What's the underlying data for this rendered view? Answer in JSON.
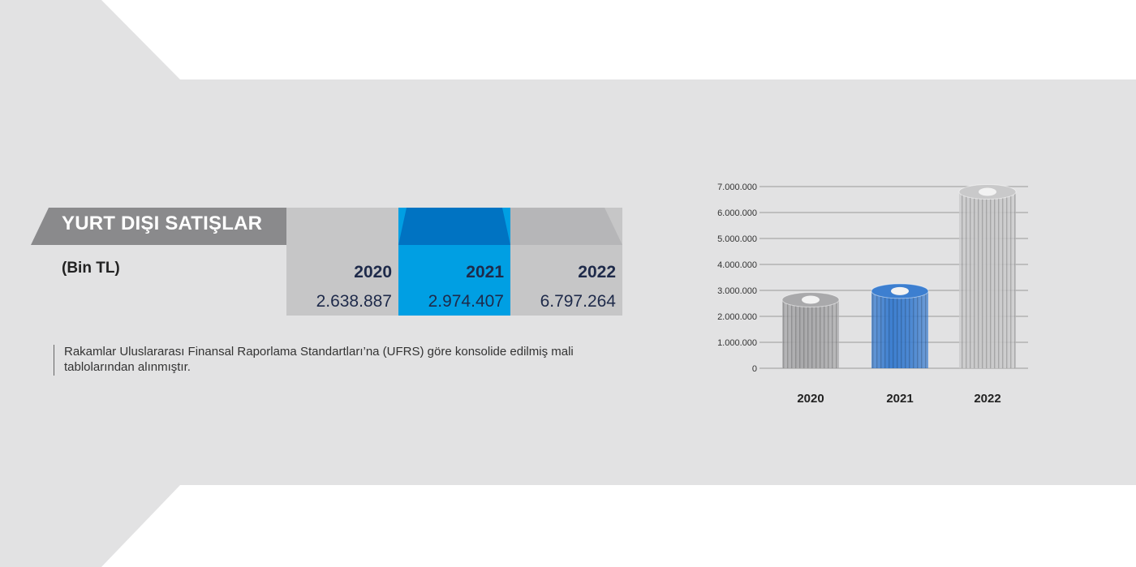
{
  "table": {
    "title": "YURT DIŞI SATIŞLAR",
    "unit": "(Bin TL)",
    "years": [
      "2020",
      "2021",
      "2022"
    ],
    "values": [
      "2.638.887",
      "2.974.407",
      "6.797.264"
    ]
  },
  "note": "Rakamlar Uluslararası Finansal Raporlama Standartları’na (UFRS) göre konsolide edilmiş mali tablolarından alınmıştır.",
  "colors": {
    "background_band": "#e2e2e3",
    "header_band": "#8a8a8c",
    "highlight_dark": "#0073c2",
    "highlight_light": "#009fe3",
    "column_grey": "#c6c6c7",
    "bar_grey": "#a9a9ab",
    "bar_blue": "#3d7fd0",
    "bar_silver": "#c9c9ca"
  },
  "chart_data": {
    "type": "bar",
    "categories": [
      "2020",
      "2021",
      "2022"
    ],
    "values": [
      2638887,
      2974407,
      6797264
    ],
    "title": "",
    "xlabel": "",
    "ylabel": "",
    "ylim": [
      0,
      7000000
    ],
    "yticks": [
      "0",
      "1.000.000",
      "2.000.000",
      "3.000.000",
      "4.000.000",
      "5.000.000",
      "6.000.000",
      "7.000.000"
    ],
    "grid": true,
    "legend": "none",
    "bar_colors": [
      "#a9a9ab",
      "#3d7fd0",
      "#c9c9ca"
    ]
  }
}
